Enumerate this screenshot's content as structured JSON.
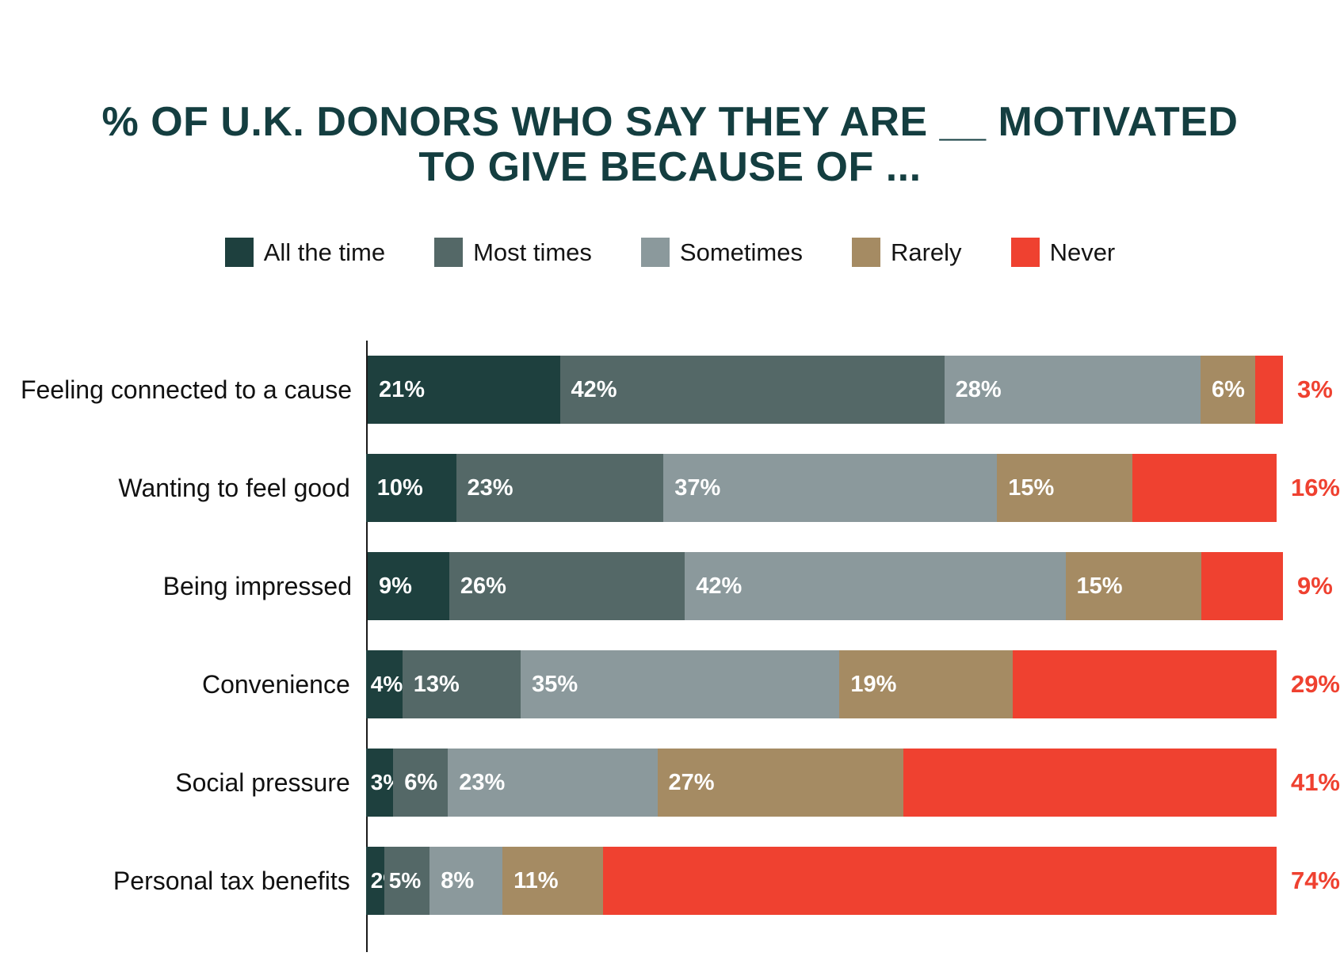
{
  "title": {
    "line1": "% OF U.K. DONORS WHO SAY THEY ARE __ MOTIVATED",
    "line2": "TO GIVE BECAUSE OF ..."
  },
  "legend": {
    "items": [
      {
        "label": "All the time",
        "color": "#1e403e"
      },
      {
        "label": "Most times",
        "color": "#546867"
      },
      {
        "label": "Sometimes",
        "color": "#8b999c"
      },
      {
        "label": "Rarely",
        "color": "#a58b63"
      },
      {
        "label": "Never",
        "color": "#ef4130"
      }
    ]
  },
  "chart_data": {
    "type": "bar",
    "stacked": true,
    "orientation": "horizontal",
    "title": "% OF U.K. DONORS WHO SAY THEY ARE __ MOTIVATED TO GIVE BECAUSE OF ...",
    "legend_position": "top",
    "xlim": [
      0,
      100
    ],
    "value_suffix": "%",
    "series_names": [
      "All the time",
      "Most times",
      "Sometimes",
      "Rarely",
      "Never"
    ],
    "colors": [
      "#1e403e",
      "#546867",
      "#8b999c",
      "#a58b63",
      "#ef4130"
    ],
    "never_label_color": "#ef4130",
    "categories": [
      "Feeling connected to a cause",
      "Wanting to feel good",
      "Being impressed",
      "Convenience",
      "Social pressure",
      "Personal tax benefits"
    ],
    "rows": [
      {
        "category": "Feeling connected to a cause",
        "values": [
          21,
          42,
          28,
          6,
          3
        ]
      },
      {
        "category": "Wanting to feel good",
        "values": [
          10,
          23,
          37,
          15,
          16
        ]
      },
      {
        "category": "Being impressed",
        "values": [
          9,
          26,
          42,
          15,
          9
        ]
      },
      {
        "category": "Convenience",
        "values": [
          4,
          13,
          35,
          19,
          29
        ]
      },
      {
        "category": "Social pressure",
        "values": [
          3,
          6,
          23,
          27,
          41
        ]
      },
      {
        "category": "Personal tax benefits",
        "values": [
          2,
          5,
          8,
          11,
          74
        ]
      }
    ]
  }
}
